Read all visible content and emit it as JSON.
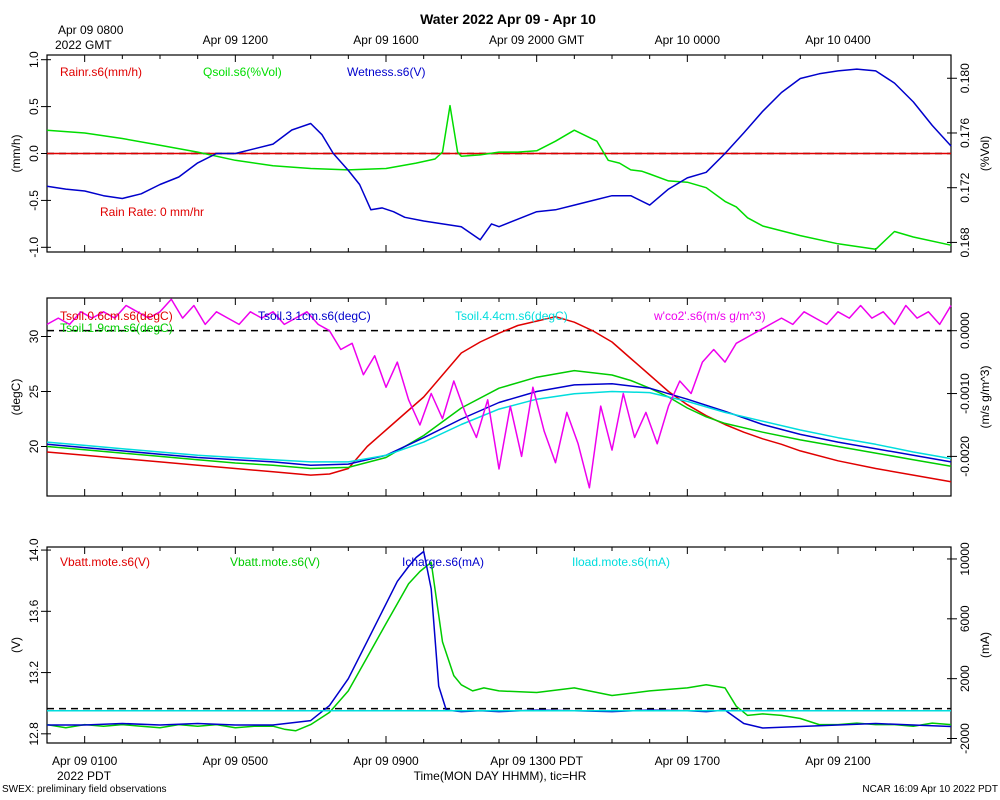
{
  "title": "Water 2022 Apr 09 - Apr 10",
  "top_axis": {
    "first_label_line1": "Apr 09 0800",
    "first_label_line2": "2022 GMT",
    "labels": [
      "Apr 09 1200",
      "Apr 09 1600",
      "Apr 09 2000 GMT",
      "Apr 10 0000",
      "Apr 10 0400"
    ]
  },
  "bottom_axis": {
    "labels": [
      "Apr 09 0100",
      "Apr 09 0500",
      "Apr 09 0900",
      "Apr 09 1300 PDT",
      "Apr 09 1700",
      "Apr 09 2100"
    ],
    "first_label_line2": "2022 PDT",
    "xlabel": "Time(MON DAY HHMM), tic=HR"
  },
  "footer": {
    "left": "SWEX: preliminary field observations",
    "right": "NCAR 16:09 Apr 10 2022 PDT"
  },
  "chart_data": [
    {
      "type": "line",
      "x_unit": "hours since Apr 09 0000 PDT",
      "xlim": [
        0,
        24
      ],
      "left_axis": {
        "label": "(mm/h)",
        "ylim": [
          -1.05,
          1.05
        ],
        "ticks": [
          "-1.0",
          "-0.5",
          "0.0",
          "0.5",
          "1.0"
        ],
        "tick_values": [
          -1.0,
          -0.5,
          0.0,
          0.5,
          1.0
        ]
      },
      "right_axis": {
        "label": "(%Vol)",
        "ylim": [
          0.1673,
          0.1817
        ],
        "ticks": [
          "0.168",
          "0.172",
          "0.176",
          "0.180"
        ],
        "tick_values": [
          0.168,
          0.172,
          0.176,
          0.18
        ]
      },
      "annotation": "Rain Rate: 0 mm/hr",
      "series": [
        {
          "name": "Rainr.s6(mm/h)",
          "color": "#e00000",
          "axis": "left",
          "x": [
            0,
            24
          ],
          "values": [
            0,
            0
          ]
        },
        {
          "name": "Qsoil.s6(%Vol)",
          "color": "#00dd00",
          "axis": "right",
          "x": [
            0,
            1,
            2,
            3,
            4,
            5,
            6,
            7,
            8,
            9,
            9.8,
            10.3,
            10.5,
            10.7,
            10.9,
            11,
            11.5,
            12,
            12.5,
            13,
            13.5,
            14,
            14.3,
            14.6,
            14.9,
            15.2,
            15.5,
            15.8,
            16,
            16.5,
            17,
            17.5,
            18,
            18.3,
            18.6,
            19,
            20,
            21,
            22,
            22.5,
            23,
            24
          ],
          "values": [
            0.1762,
            0.176,
            0.1756,
            0.1751,
            0.1746,
            0.174,
            0.1736,
            0.1734,
            0.1733,
            0.1734,
            0.1738,
            0.1741,
            0.1746,
            0.178,
            0.1746,
            0.1743,
            0.1744,
            0.1746,
            0.1746,
            0.1747,
            0.1754,
            0.1762,
            0.1758,
            0.1754,
            0.174,
            0.1738,
            0.1733,
            0.1732,
            0.173,
            0.1725,
            0.1724,
            0.172,
            0.171,
            0.1706,
            0.1698,
            0.1692,
            0.1685,
            0.1679,
            0.1675,
            0.1688,
            0.1684,
            0.1678
          ]
        },
        {
          "name": "Wetness.s6(V)",
          "color": "#0000cc",
          "axis": "left",
          "x": [
            0,
            0.5,
            1,
            1.5,
            2,
            2.5,
            3,
            3.5,
            4,
            4.5,
            5,
            5.5,
            6,
            6.5,
            7,
            7.3,
            7.6,
            8,
            8.3,
            8.6,
            8.9,
            9.2,
            9.5,
            10,
            10.5,
            11,
            11.5,
            11.8,
            12,
            12.5,
            13,
            13.5,
            14,
            14.5,
            15,
            15.5,
            16,
            16.5,
            17,
            17.5,
            18,
            18.5,
            19,
            19.5,
            20,
            20.5,
            21,
            21.5,
            22,
            22.5,
            23,
            23.5,
            24
          ],
          "values": [
            -0.35,
            -0.38,
            -0.4,
            -0.45,
            -0.48,
            -0.43,
            -0.33,
            -0.25,
            -0.1,
            0.0,
            0.0,
            0.05,
            0.1,
            0.25,
            0.32,
            0.2,
            0.0,
            -0.18,
            -0.33,
            -0.6,
            -0.58,
            -0.62,
            -0.68,
            -0.72,
            -0.75,
            -0.78,
            -0.92,
            -0.75,
            -0.78,
            -0.7,
            -0.62,
            -0.6,
            -0.55,
            -0.5,
            -0.45,
            -0.45,
            -0.55,
            -0.38,
            -0.26,
            -0.2,
            0.0,
            0.22,
            0.45,
            0.65,
            0.8,
            0.85,
            0.88,
            0.9,
            0.88,
            0.75,
            0.55,
            0.3,
            0.08
          ]
        }
      ]
    },
    {
      "type": "line",
      "x_unit": "hours since Apr 09 0000 PDT",
      "xlim": [
        0,
        24
      ],
      "left_axis": {
        "label": "(degC)",
        "ylim": [
          15.5,
          33.5
        ],
        "ticks": [
          "20",
          "25",
          "30"
        ],
        "tick_values": [
          20,
          25,
          30
        ]
      },
      "right_axis": {
        "label": "(m/s g/m^3)",
        "ylim": [
          -0.00263,
          0.00052
        ],
        "ticks": [
          "-0.0020",
          "-0.0010",
          "0.0000"
        ],
        "tick_values": [
          -0.002,
          -0.001,
          0.0
        ]
      },
      "series": [
        {
          "name": "Tsoil.0.6cm.s6(degC)",
          "color": "#e00000",
          "axis": "left",
          "x": [
            0,
            1,
            2,
            3,
            4,
            5,
            6,
            7,
            7.5,
            8,
            8.5,
            9,
            9.5,
            10,
            10.5,
            11,
            11.5,
            12,
            12.5,
            13,
            13.5,
            14,
            14.5,
            15,
            15.5,
            16,
            16.5,
            17,
            17.5,
            18,
            18.5,
            19,
            19.5,
            20,
            21,
            22,
            23,
            24
          ],
          "values": [
            19.5,
            19.2,
            18.9,
            18.6,
            18.3,
            18.0,
            17.7,
            17.4,
            17.5,
            18.0,
            20.0,
            21.5,
            23.0,
            24.5,
            26.5,
            28.5,
            29.5,
            30.3,
            31.0,
            31.4,
            31.8,
            31.3,
            30.5,
            29.5,
            28.0,
            26.5,
            25.0,
            23.8,
            22.8,
            22.0,
            21.3,
            20.7,
            20.2,
            19.6,
            18.7,
            18.0,
            17.4,
            16.8
          ]
        },
        {
          "name": "Tsoil.1.9cm.s6(degC)",
          "color": "#00cc00",
          "axis": "left",
          "x": [
            0,
            1,
            2,
            3,
            4,
            5,
            6,
            7,
            8,
            9,
            10,
            11,
            12,
            13,
            14,
            15,
            15.5,
            16,
            16.5,
            17,
            17.5,
            18,
            19,
            20,
            21,
            22,
            23,
            24
          ],
          "values": [
            20.0,
            19.7,
            19.4,
            19.1,
            18.8,
            18.5,
            18.3,
            18.0,
            18.1,
            19.0,
            21.0,
            23.5,
            25.3,
            26.3,
            26.9,
            26.5,
            26.0,
            25.3,
            24.5,
            23.5,
            22.7,
            22.1,
            21.3,
            20.6,
            20.0,
            19.4,
            18.8,
            18.2
          ]
        },
        {
          "name": "Tsoil.3.1cm.s6(degC)",
          "color": "#0000cc",
          "axis": "left",
          "x": [
            0,
            1,
            2,
            3,
            4,
            5,
            6,
            7,
            8,
            9,
            10,
            11,
            12,
            13,
            14,
            15,
            16,
            17,
            18,
            19,
            20,
            21,
            22,
            23,
            24
          ],
          "values": [
            20.2,
            19.9,
            19.6,
            19.3,
            19.0,
            18.8,
            18.6,
            18.3,
            18.4,
            19.2,
            20.8,
            22.5,
            24.0,
            25.0,
            25.6,
            25.7,
            25.3,
            24.3,
            23.2,
            22.0,
            21.1,
            20.4,
            19.8,
            19.2,
            18.6
          ]
        },
        {
          "name": "Tsoil.4.4cm.s6(degC)",
          "color": "#00dddd",
          "axis": "left",
          "x": [
            0,
            1,
            2,
            3,
            4,
            5,
            6,
            7,
            8,
            9,
            10,
            11,
            12,
            13,
            14,
            15,
            16,
            17,
            18,
            19,
            20,
            21,
            22,
            23,
            24
          ],
          "values": [
            20.4,
            20.1,
            19.8,
            19.5,
            19.2,
            19.0,
            18.8,
            18.6,
            18.6,
            19.2,
            20.4,
            22.0,
            23.4,
            24.3,
            24.8,
            25.0,
            24.9,
            24.1,
            23.1,
            22.3,
            21.5,
            20.8,
            20.2,
            19.5,
            18.9
          ]
        },
        {
          "name": "w'co2'.s6(m/s g/m^3)",
          "color": "#ee00ee",
          "axis": "right",
          "x": [
            0,
            0.3,
            0.6,
            0.9,
            1.2,
            1.5,
            1.8,
            2.1,
            2.4,
            2.7,
            3.0,
            3.3,
            3.6,
            3.9,
            4.2,
            4.5,
            4.8,
            5.1,
            5.4,
            5.7,
            6.0,
            6.3,
            6.6,
            6.9,
            7.2,
            7.5,
            7.8,
            8.1,
            8.4,
            8.7,
            9.0,
            9.3,
            9.6,
            9.9,
            10.2,
            10.5,
            10.8,
            11.1,
            11.4,
            11.7,
            12.0,
            12.3,
            12.6,
            12.9,
            13.2,
            13.5,
            13.8,
            14.1,
            14.4,
            14.7,
            15.0,
            15.3,
            15.6,
            15.9,
            16.2,
            16.5,
            16.8,
            17.1,
            17.4,
            17.7,
            18.0,
            18.3,
            18.6,
            18.9,
            19.2,
            19.5,
            19.8,
            20.1,
            20.4,
            20.7,
            21.0,
            21.3,
            21.6,
            21.9,
            22.2,
            22.5,
            22.8,
            23.1,
            23.4,
            23.7,
            24.0
          ],
          "values": [
            0.0001,
            0.0002,
            0.0001,
            0.0003,
            0.0002,
            0.0003,
            0.0002,
            0.0004,
            0.0003,
            0.0002,
            0.0003,
            0.0005,
            0.0002,
            0.0004,
            0.0001,
            0.0003,
            0.0002,
            0.0001,
            0.0003,
            0.0002,
            0.0003,
            0.0001,
            0.0002,
            0.0003,
            0.0001,
            0.0,
            -0.0003,
            -0.0002,
            -0.0007,
            -0.0004,
            -0.0009,
            -0.0005,
            -0.0011,
            -0.0015,
            -0.001,
            -0.0014,
            -0.0008,
            -0.0013,
            -0.0017,
            -0.0011,
            -0.0022,
            -0.0012,
            -0.002,
            -0.0009,
            -0.0016,
            -0.0021,
            -0.0013,
            -0.0018,
            -0.0025,
            -0.0012,
            -0.0019,
            -0.001,
            -0.0017,
            -0.0013,
            -0.0018,
            -0.0012,
            -0.0008,
            -0.001,
            -0.0005,
            -0.0003,
            -0.0005,
            -0.0002,
            -0.0001,
            0.0,
            0.0001,
            0.0002,
            0.0001,
            0.0003,
            0.0002,
            0.0001,
            0.0003,
            0.0002,
            0.0004,
            0.0002,
            0.0003,
            0.0001,
            0.0004,
            0.0002,
            0.0003,
            0.0001,
            0.0004
          ]
        }
      ]
    },
    {
      "type": "line",
      "x_unit": "hours since Apr 09 0000 PDT",
      "xlim": [
        0,
        24
      ],
      "left_axis": {
        "label": "(V)",
        "ylim": [
          12.74,
          14.02
        ],
        "ticks": [
          "12.8",
          "13.2",
          "13.6",
          "14.0"
        ],
        "tick_values": [
          12.8,
          13.2,
          13.6,
          14.0
        ]
      },
      "right_axis": {
        "label": "(mA)",
        "ylim": [
          -2300,
          10800
        ],
        "ticks": [
          "-2000",
          "2000",
          "6000",
          "10000"
        ],
        "tick_values": [
          -2000,
          2000,
          6000,
          10000
        ]
      },
      "series": [
        {
          "name": "Vbatt.mote.s6(V)",
          "color": "#e00000",
          "axis": "left",
          "x": [],
          "values": []
        },
        {
          "name": "Vbatt.mote.s6(V)",
          "color": "#00cc00",
          "axis": "left",
          "x": [
            0,
            0.5,
            1,
            1.5,
            2,
            2.5,
            3,
            3.5,
            4,
            4.5,
            5,
            5.5,
            6,
            6.3,
            6.6,
            7,
            7.5,
            8,
            8.5,
            9,
            9.3,
            9.6,
            9.9,
            10.2,
            10.5,
            10.8,
            11,
            11.3,
            11.6,
            12,
            13,
            14,
            15,
            16,
            17,
            17.5,
            18,
            18.3,
            18.6,
            19,
            19.5,
            20,
            20.5,
            21,
            21.5,
            22,
            22.5,
            23,
            23.5,
            24
          ],
          "values": [
            12.86,
            12.84,
            12.86,
            12.85,
            12.86,
            12.85,
            12.84,
            12.86,
            12.85,
            12.86,
            12.84,
            12.85,
            12.85,
            12.83,
            12.82,
            12.86,
            12.94,
            13.08,
            13.3,
            13.52,
            13.65,
            13.78,
            13.86,
            13.92,
            13.4,
            13.18,
            13.12,
            13.08,
            13.1,
            13.08,
            13.07,
            13.1,
            13.05,
            13.08,
            13.1,
            13.12,
            13.1,
            12.98,
            12.92,
            12.93,
            12.92,
            12.9,
            12.86,
            12.86,
            12.87,
            12.86,
            12.86,
            12.85,
            12.87,
            12.86
          ]
        },
        {
          "name": "Icharge.s6(mA)",
          "color": "#0000cc",
          "axis": "right",
          "x": [
            0,
            1,
            2,
            3,
            4,
            5,
            6,
            7,
            7.5,
            8,
            8.5,
            9,
            9.3,
            9.6,
            9.8,
            10.0,
            10.2,
            10.4,
            10.6,
            11,
            11.5,
            12,
            13,
            14,
            15,
            16,
            17,
            17.5,
            18,
            18.5,
            19,
            20,
            21,
            22,
            23,
            24
          ],
          "values": [
            -1100,
            -1100,
            -1000,
            -1100,
            -1000,
            -1100,
            -1100,
            -800,
            200,
            2000,
            4500,
            7000,
            8500,
            9500,
            10100,
            10500,
            8000,
            1500,
            -100,
            -200,
            -150,
            -200,
            -100,
            -150,
            -200,
            -100,
            -150,
            -200,
            -100,
            -1000,
            -1300,
            -1200,
            -1100,
            -1000,
            -1100,
            -1200
          ]
        },
        {
          "name": "Iload.mote.s6(mA)",
          "color": "#00dddd",
          "axis": "right",
          "x": [
            0,
            24
          ],
          "values": [
            -150,
            -150
          ]
        }
      ]
    }
  ]
}
